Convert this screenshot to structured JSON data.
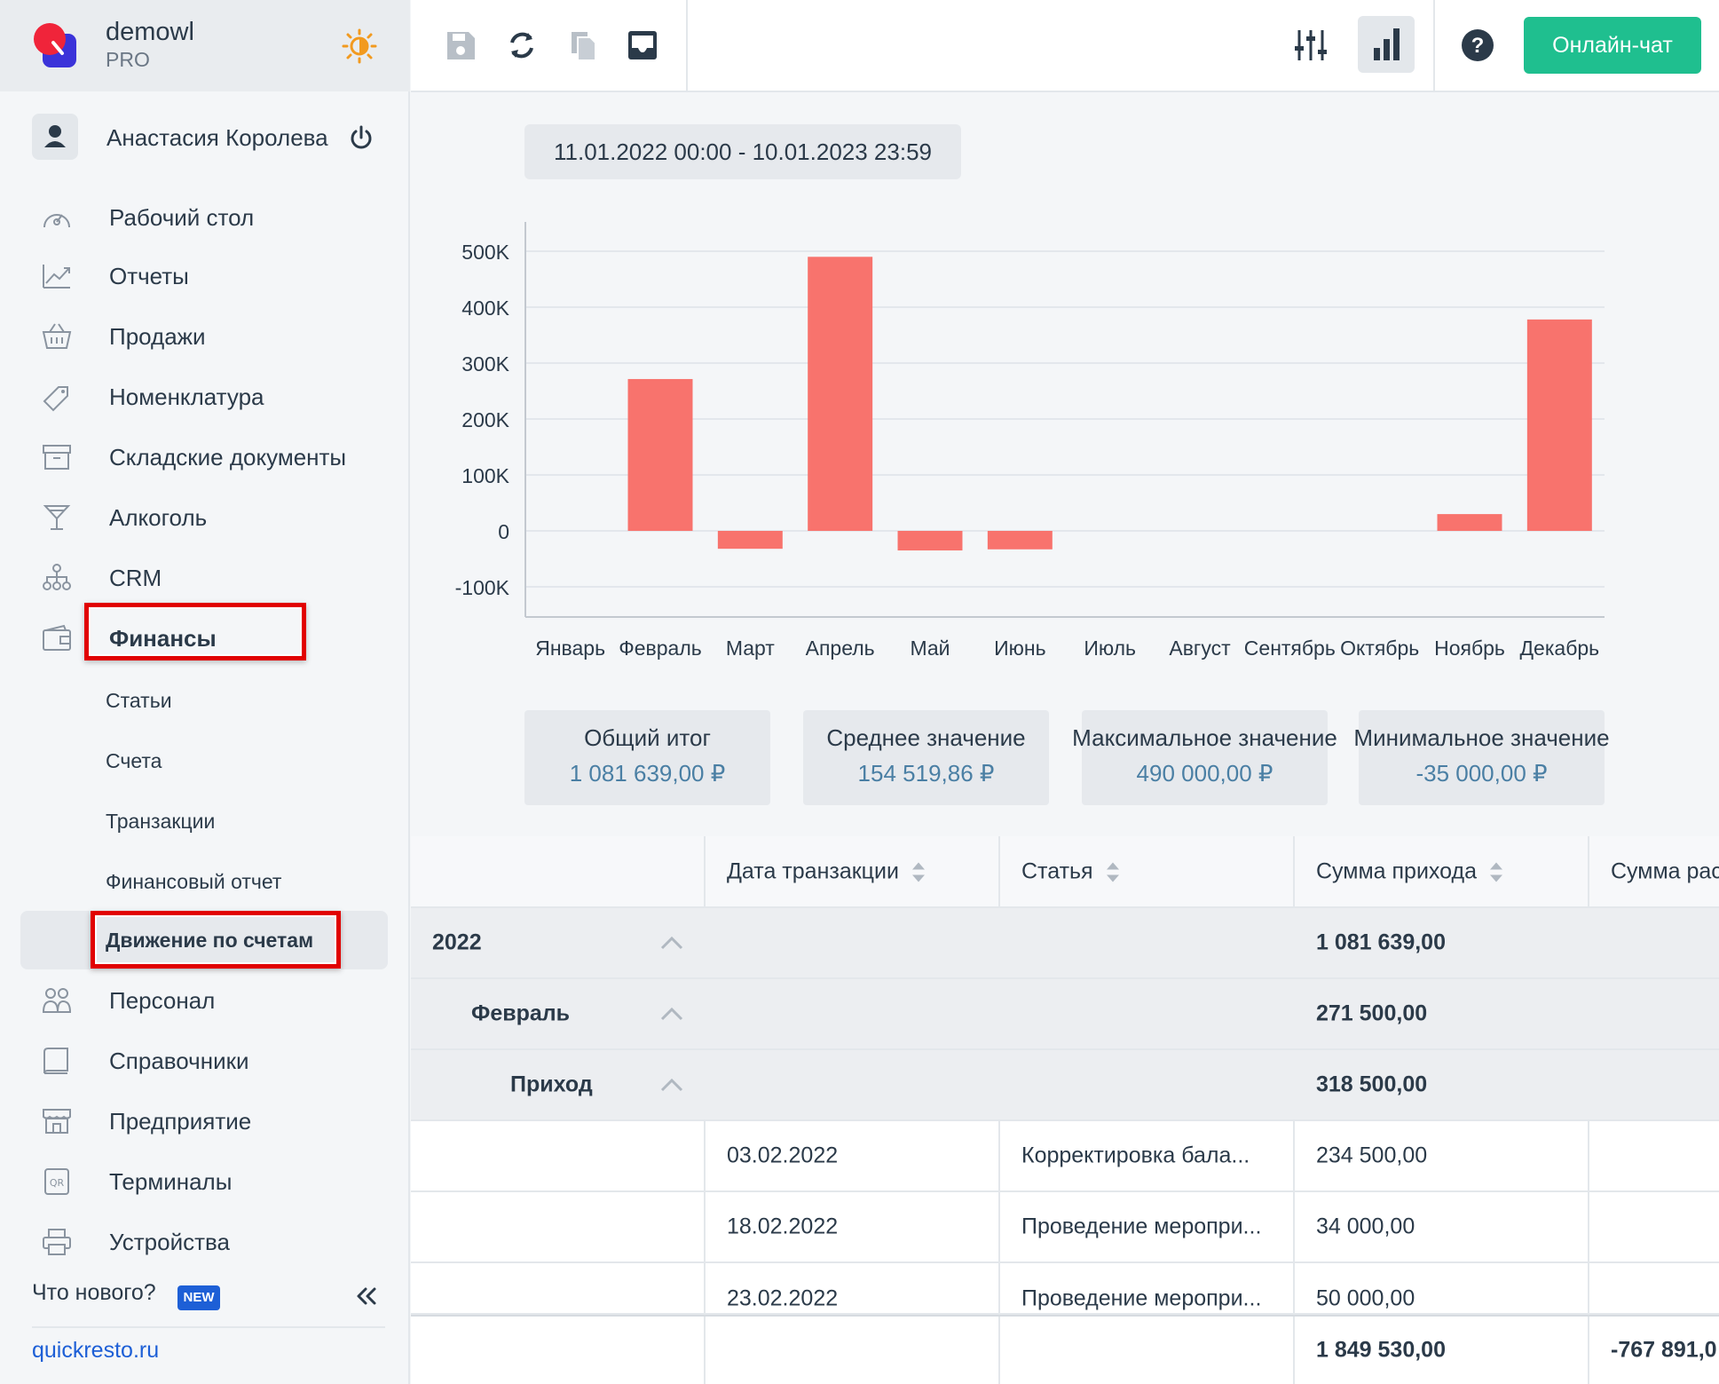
{
  "brand": {
    "name": "demowl",
    "plan": "PRO"
  },
  "user": {
    "name": "Анастасия Королева"
  },
  "nav": {
    "items": [
      {
        "label": "Рабочий стол",
        "icon": "dashboard-icon"
      },
      {
        "label": "Отчеты",
        "icon": "chart-trend-icon"
      },
      {
        "label": "Продажи",
        "icon": "basket-icon"
      },
      {
        "label": "Номенклатура",
        "icon": "tag-icon"
      },
      {
        "label": "Складские документы",
        "icon": "archive-box-icon"
      },
      {
        "label": "Алкоголь",
        "icon": "cocktail-glass-icon"
      },
      {
        "label": "CRM",
        "icon": "org-chart-icon"
      },
      {
        "label": "Финансы",
        "icon": "wallet-icon"
      }
    ],
    "finance_sub": [
      {
        "label": "Статьи"
      },
      {
        "label": "Счета"
      },
      {
        "label": "Транзакции"
      },
      {
        "label": "Финансовый отчет"
      },
      {
        "label": "Движение по счетам"
      }
    ],
    "items_after": [
      {
        "label": "Персонал",
        "icon": "people-icon"
      },
      {
        "label": "Справочники",
        "icon": "book-icon"
      },
      {
        "label": "Предприятие",
        "icon": "store-icon"
      },
      {
        "label": "Терминалы",
        "icon": "qr-terminal-icon"
      },
      {
        "label": "Устройства",
        "icon": "printer-icon"
      }
    ]
  },
  "footer": {
    "whats_new": "Что нового?",
    "new_badge": "NEW",
    "site": "quickresto.ru"
  },
  "toolbar": {
    "chat_label": "Онлайн-чат"
  },
  "date_range": "11.01.2022 00:00 - 10.01.2023 23:59",
  "chart_data": {
    "type": "bar",
    "categories": [
      "Январь",
      "Февраль",
      "Март",
      "Апрель",
      "Май",
      "Июнь",
      "Июль",
      "Август",
      "Сентябрь",
      "Октябрь",
      "Ноябрь",
      "Декабрь"
    ],
    "values": [
      0,
      271500,
      -32000,
      490000,
      -35000,
      -33000,
      0,
      0,
      0,
      0,
      30000,
      378000
    ],
    "yticks": [
      "500K",
      "400K",
      "300K",
      "200K",
      "100K",
      "0",
      "-100K"
    ],
    "ylim": [
      -150000,
      540000
    ],
    "bar_color": "#f8736d",
    "grid": true
  },
  "stats": [
    {
      "label": "Общий итог",
      "value": "1 081 639,00 ₽"
    },
    {
      "label": "Среднее значение",
      "value": "154 519,86 ₽"
    },
    {
      "label": "Максимальное значение",
      "value": "490 000,00 ₽"
    },
    {
      "label": "Минимальное значение",
      "value": "-35 000,00 ₽"
    }
  ],
  "table": {
    "headers": [
      "Дата транзакции",
      "Статья",
      "Сумма прихода",
      "Сумма рас"
    ],
    "groups": [
      {
        "label": "2022",
        "income": "1 081 639,00"
      },
      {
        "label": "Февраль",
        "income": "271 500,00"
      },
      {
        "label": "Приход",
        "income": "318 500,00"
      }
    ],
    "rows": [
      {
        "date": "03.02.2022",
        "article": "Корректировка бала...",
        "income": "234 500,00"
      },
      {
        "date": "18.02.2022",
        "article": "Проведение меропри...",
        "income": "34 000,00"
      },
      {
        "date": "23.02.2022",
        "article": "Проведение меропри...",
        "income": "50 000,00"
      }
    ],
    "totals": {
      "income": "1 849 530,00",
      "expense": "-767 891,0"
    }
  }
}
